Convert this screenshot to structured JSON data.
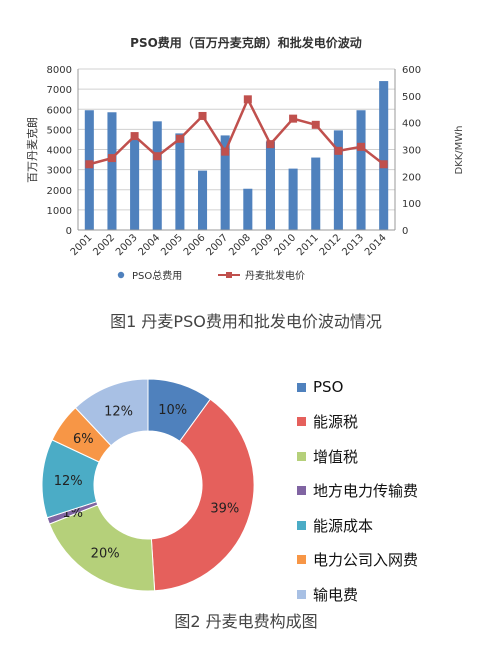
{
  "chart_data": [
    {
      "type": "bar+line",
      "title": "PSO费用（百万丹麦克朗）和批发电价波动",
      "categories": [
        "2001",
        "2002",
        "2003",
        "2004",
        "2005",
        "2006",
        "2007",
        "2008",
        "2009",
        "2010",
        "2011",
        "2012",
        "2013",
        "2014"
      ],
      "ylabel_left": "百万丹麦克朗",
      "ylabel_right": "DKK/MWh",
      "ylim_left": [
        0,
        8000
      ],
      "ylim_right": [
        0,
        600
      ],
      "yticks_left": [
        "0",
        "1000",
        "2000",
        "3000",
        "4000",
        "5000",
        "6000",
        "7000",
        "8000"
      ],
      "yticks_right": [
        "0",
        "100",
        "200",
        "300",
        "400",
        "500",
        "600"
      ],
      "grid": true,
      "legend_position": "bottom",
      "series": [
        {
          "name": "PSO总费用",
          "type": "bar",
          "axis": "left",
          "color": "#4F81BD",
          "values": [
            5950,
            5850,
            4500,
            5400,
            4800,
            2950,
            4700,
            2050,
            4400,
            3050,
            3600,
            4950,
            5950,
            7400
          ]
        },
        {
          "name": "丹麦批发电价",
          "type": "line",
          "axis": "right",
          "color": "#C0504D",
          "values": [
            245,
            268,
            350,
            275,
            340,
            425,
            292,
            487,
            320,
            415,
            392,
            295,
            310,
            245
          ]
        }
      ]
    },
    {
      "type": "pie",
      "donut": true,
      "legend_position": "right",
      "slices": [
        {
          "label": "PSO",
          "value": 10,
          "text": "10%",
          "color": "#4F81BD"
        },
        {
          "label": "能源税",
          "value": 39,
          "text": "39%",
          "color": "#E5605C"
        },
        {
          "label": "增值税",
          "value": 20,
          "text": "20%",
          "color": "#B5D07A"
        },
        {
          "label": "地方电力传输费",
          "value": 1,
          "text": "1%",
          "color": "#8064A2"
        },
        {
          "label": "能源成本",
          "value": 12,
          "text": "12%",
          "color": "#4BACC6"
        },
        {
          "label": "电力公司入网费",
          "value": 6,
          "text": "6%",
          "color": "#F79646"
        },
        {
          "label": "输电费",
          "value": 12,
          "text": "12%",
          "color": "#A8C0E4"
        }
      ]
    }
  ],
  "captions": {
    "figure1": "图1 丹麦PSO费用和批发电价波动情况",
    "figure2": "图2 丹麦电费构成图"
  }
}
